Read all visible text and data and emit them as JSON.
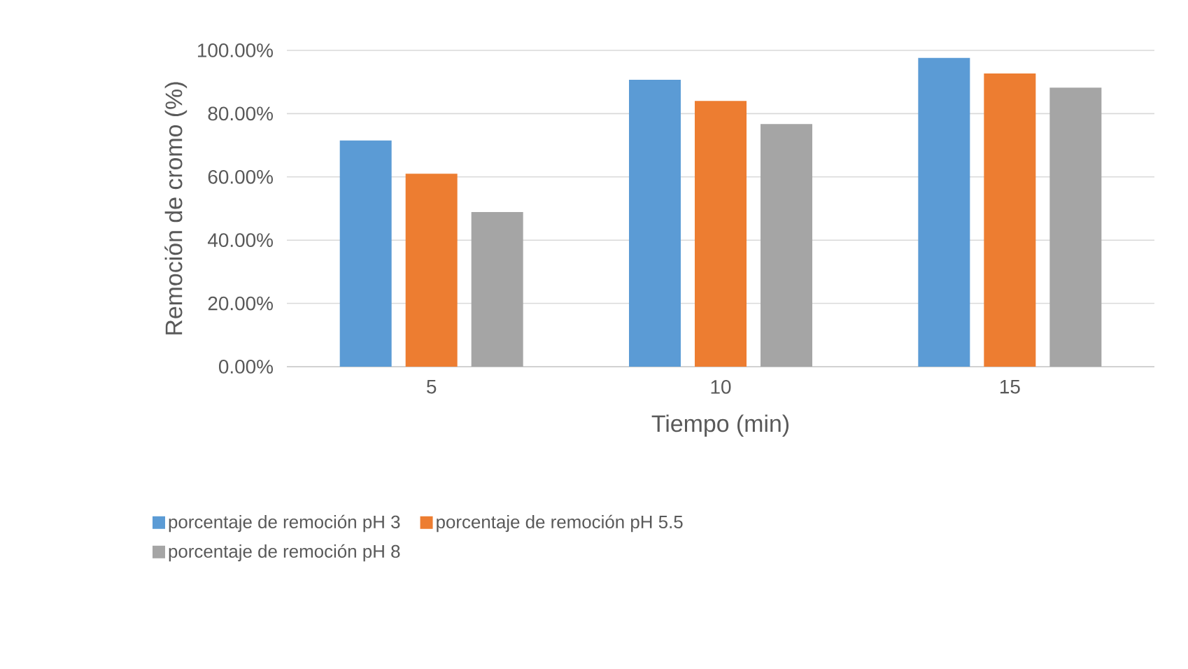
{
  "chart_data": {
    "type": "bar",
    "xlabel": "Tiempo (min)",
    "ylabel": "Remoción de cromo (%)",
    "categories": [
      "5",
      "10",
      "15"
    ],
    "series": [
      {
        "name": "porcentaje de remoción  pH 3",
        "color": "#5b9bd5",
        "values": [
          71.5,
          90.7,
          97.6
        ]
      },
      {
        "name": "porcentaje de remoción  pH 5.5",
        "color": "#ed7d31",
        "values": [
          61.0,
          84.0,
          92.7
        ]
      },
      {
        "name": "porcentaje de remoción  pH 8",
        "color": "#a5a5a5",
        "values": [
          48.9,
          76.7,
          88.2
        ]
      }
    ],
    "ylim": [
      0,
      100
    ],
    "yticks": [
      {
        "value": 0,
        "label": "0.00%"
      },
      {
        "value": 20,
        "label": "20.00%"
      },
      {
        "value": 40,
        "label": "40.00%"
      },
      {
        "value": 60,
        "label": "60.00%"
      },
      {
        "value": 80,
        "label": "80.00%"
      },
      {
        "value": 100,
        "label": "100.00%"
      }
    ],
    "grid": "y",
    "legend": "bottom"
  }
}
